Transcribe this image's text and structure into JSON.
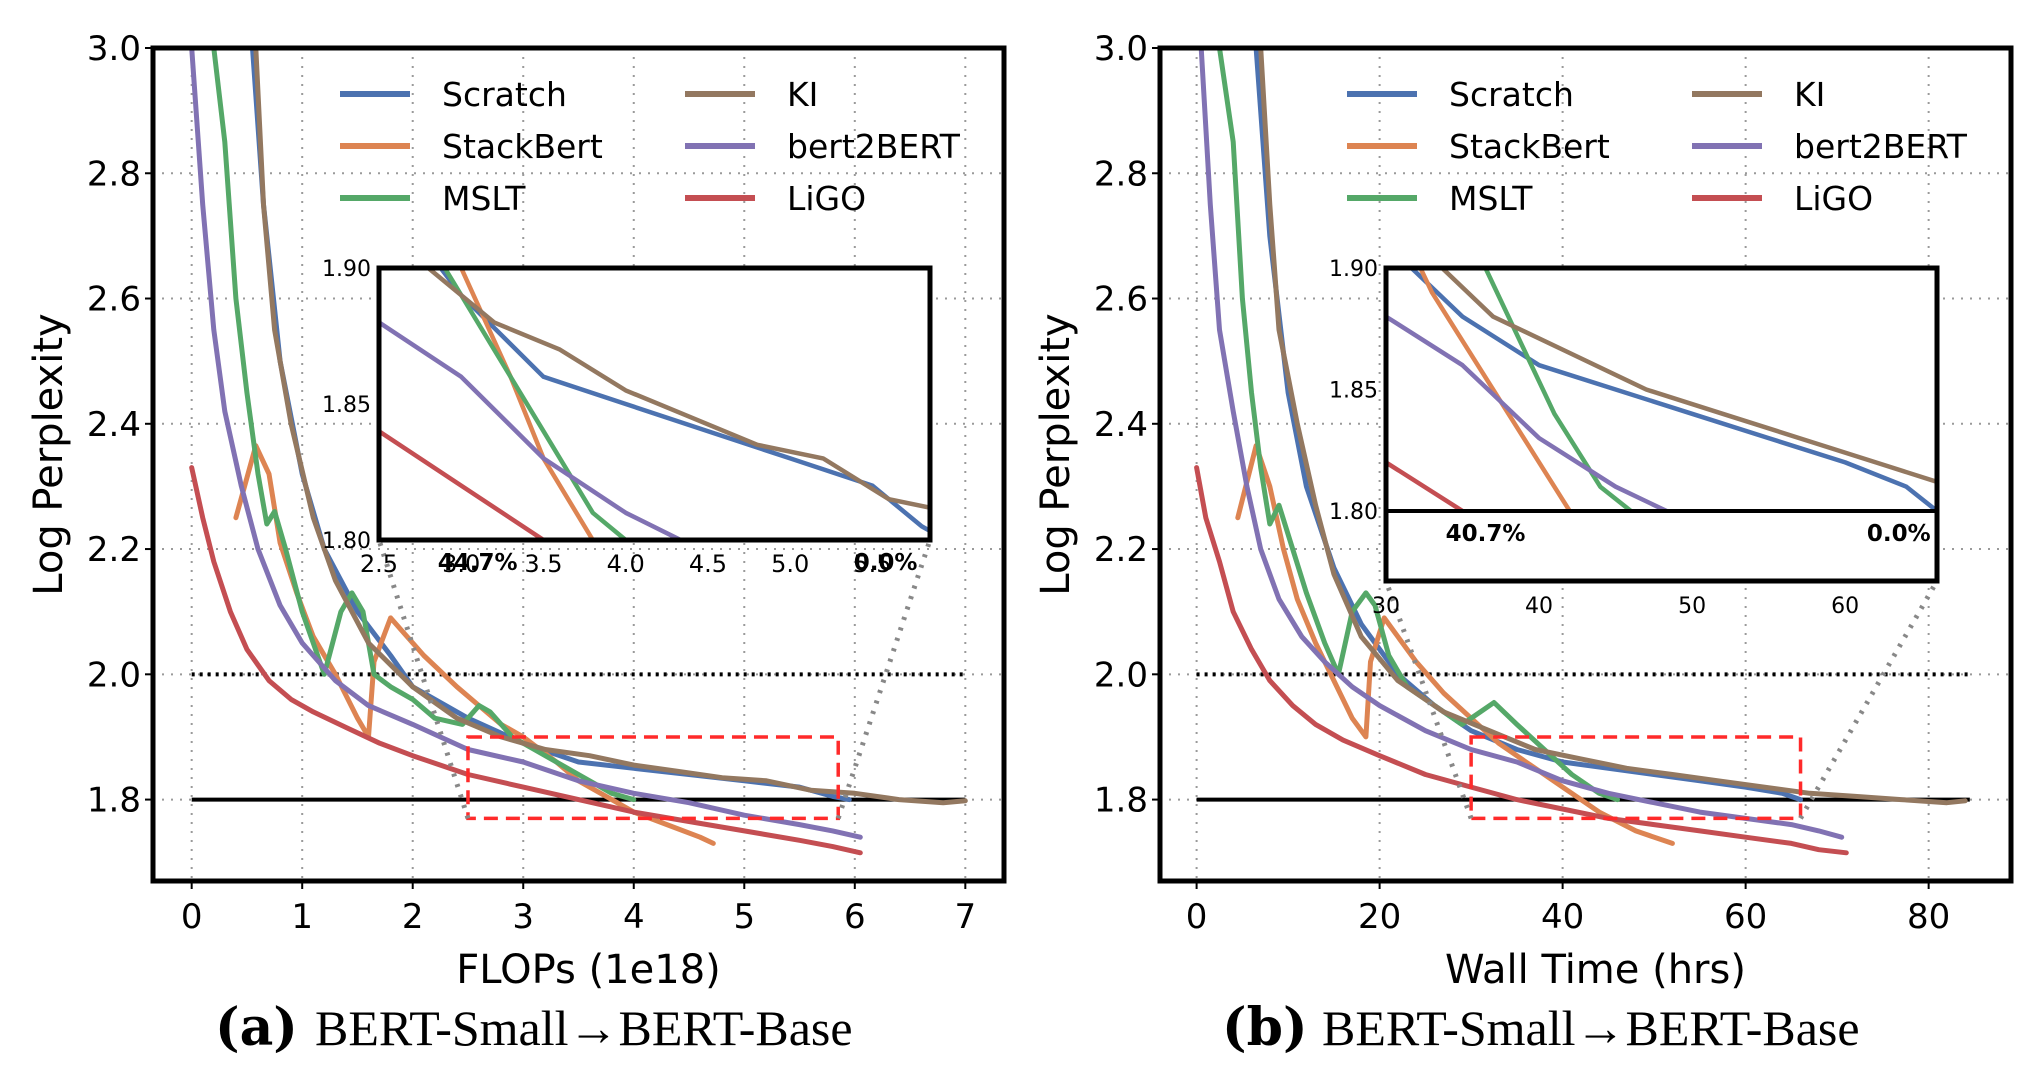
{
  "colors": {
    "Scratch": "#4C72B0",
    "StackBert": "#DD8452",
    "MSLT": "#55A868",
    "KI": "#937860",
    "bert2BERT": "#8172B3",
    "LiGO": "#C44E52",
    "zoom_box": "#FF2A2A",
    "connector": "#888888"
  },
  "captions": [
    {
      "letter": "(a)",
      "text": "BERT-Small→BERT-Base"
    },
    {
      "letter": "(b)",
      "text": "BERT-Small→BERT-Base"
    }
  ],
  "chart_data": [
    {
      "type": "line",
      "xlabel": "FLOPs (1e18)",
      "ylabel": "Log Perplexity",
      "xlim": [
        -0.35,
        7.35
      ],
      "ylim": [
        1.67,
        3.0
      ],
      "xticks": [
        "0",
        "1",
        "2",
        "3",
        "4",
        "5",
        "6",
        "7"
      ],
      "yticks": [
        "1.8",
        "2.0",
        "2.2",
        "2.4",
        "2.6",
        "2.8",
        "3.0"
      ],
      "grid": true,
      "legend": "top (two columns)",
      "legend_entries": [
        "Scratch",
        "StackBert",
        "MSLT",
        "KI",
        "bert2BERT",
        "LiGO"
      ],
      "reference_lines": [
        {
          "y": 1.8,
          "style": "solid"
        },
        {
          "y": 2.0,
          "style": "dotted"
        }
      ],
      "zoom_region": {
        "x": [
          2.5,
          5.85
        ],
        "y": [
          1.77,
          1.9
        ]
      },
      "series": [
        {
          "name": "Scratch",
          "x": [
            0.55,
            0.65,
            0.8,
            1.0,
            1.2,
            1.5,
            1.8,
            2.0,
            2.5,
            3.0,
            3.5,
            4.0,
            4.5,
            5.0,
            5.5,
            5.8,
            5.95
          ],
          "y": [
            3.0,
            2.75,
            2.5,
            2.32,
            2.2,
            2.1,
            2.03,
            1.98,
            1.93,
            1.89,
            1.86,
            1.85,
            1.84,
            1.83,
            1.82,
            1.805,
            1.8
          ]
        },
        {
          "name": "StackBert",
          "x": [
            0.4,
            0.58,
            0.7,
            0.8,
            0.95,
            1.1,
            1.3,
            1.5,
            1.6,
            1.65,
            1.8,
            1.9,
            2.1,
            2.4,
            2.6,
            2.8,
            3.0,
            3.3,
            3.5,
            3.8,
            4.0,
            4.3,
            4.6,
            4.72
          ],
          "y": [
            2.25,
            2.365,
            2.32,
            2.21,
            2.13,
            2.06,
            2.0,
            1.93,
            1.9,
            2.02,
            2.09,
            2.07,
            2.03,
            1.98,
            1.95,
            1.92,
            1.9,
            1.86,
            1.83,
            1.8,
            1.78,
            1.76,
            1.74,
            1.73
          ]
        },
        {
          "name": "MSLT",
          "x": [
            0.2,
            0.3,
            0.4,
            0.5,
            0.6,
            0.68,
            0.75,
            0.85,
            1.0,
            1.2,
            1.35,
            1.45,
            1.55,
            1.65,
            1.8,
            2.0,
            2.2,
            2.45,
            2.6,
            2.7,
            2.9,
            3.2,
            3.5,
            3.8,
            4.0
          ],
          "y": [
            3.0,
            2.85,
            2.6,
            2.45,
            2.32,
            2.24,
            2.26,
            2.2,
            2.1,
            2.0,
            2.1,
            2.13,
            2.1,
            2.0,
            1.98,
            1.96,
            1.93,
            1.92,
            1.95,
            1.94,
            1.9,
            1.87,
            1.84,
            1.81,
            1.8
          ]
        },
        {
          "name": "KI",
          "x": [
            0.58,
            0.65,
            0.75,
            0.9,
            1.1,
            1.3,
            1.6,
            2.0,
            2.4,
            2.8,
            3.2,
            3.6,
            4.0,
            4.4,
            4.8,
            5.2,
            5.6,
            6.0,
            6.4,
            6.8,
            7.0
          ],
          "y": [
            3.0,
            2.75,
            2.55,
            2.4,
            2.25,
            2.15,
            2.05,
            1.98,
            1.93,
            1.9,
            1.88,
            1.87,
            1.855,
            1.845,
            1.835,
            1.83,
            1.815,
            1.81,
            1.8,
            1.795,
            1.798
          ]
        },
        {
          "name": "bert2BERT",
          "x": [
            0.0,
            0.1,
            0.2,
            0.3,
            0.45,
            0.6,
            0.8,
            1.0,
            1.3,
            1.6,
            2.0,
            2.5,
            3.0,
            3.5,
            4.0,
            4.5,
            5.0,
            5.5,
            5.8,
            6.05
          ],
          "y": [
            3.0,
            2.75,
            2.55,
            2.42,
            2.3,
            2.2,
            2.11,
            2.05,
            1.99,
            1.95,
            1.92,
            1.88,
            1.86,
            1.83,
            1.81,
            1.795,
            1.775,
            1.76,
            1.75,
            1.74
          ]
        },
        {
          "name": "LiGO",
          "x": [
            0.0,
            0.1,
            0.2,
            0.35,
            0.5,
            0.7,
            0.9,
            1.1,
            1.4,
            1.7,
            2.0,
            2.5,
            3.0,
            3.5,
            4.0,
            4.5,
            5.0,
            5.5,
            5.8,
            6.05
          ],
          "y": [
            2.33,
            2.25,
            2.18,
            2.1,
            2.04,
            1.99,
            1.96,
            1.94,
            1.915,
            1.89,
            1.87,
            1.84,
            1.82,
            1.8,
            1.78,
            1.765,
            1.75,
            1.735,
            1.725,
            1.715
          ]
        }
      ],
      "inset": {
        "xlim": [
          2.5,
          5.85
        ],
        "ylim": [
          1.8,
          1.9
        ],
        "xticks": [
          "2.5",
          "3.0",
          "3.5",
          "4.0",
          "4.5",
          "5.0",
          "5.5"
        ],
        "yticks": [
          "1.80",
          "1.85",
          "1.90"
        ],
        "annotations": [
          {
            "text": "44.7%",
            "x": 3.1
          },
          {
            "text": "0.0%",
            "x": 5.58
          }
        ]
      }
    },
    {
      "type": "line",
      "xlabel": "Wall Time (hrs)",
      "ylabel": "Log Perplexity",
      "xlim": [
        -4,
        89
      ],
      "ylim": [
        1.67,
        3.0
      ],
      "xticks": [
        "0",
        "20",
        "40",
        "60",
        "80"
      ],
      "yticks": [
        "1.8",
        "2.0",
        "2.2",
        "2.4",
        "2.6",
        "2.8",
        "3.0"
      ],
      "grid": true,
      "legend": "top (two columns)",
      "legend_entries": [
        "Scratch",
        "StackBert",
        "MSLT",
        "KI",
        "bert2BERT",
        "LiGO"
      ],
      "reference_lines": [
        {
          "y": 1.8,
          "style": "solid"
        },
        {
          "y": 2.0,
          "style": "dotted"
        }
      ],
      "zoom_region": {
        "x": [
          30,
          66
        ],
        "y": [
          1.77,
          1.9
        ]
      },
      "series": [
        {
          "name": "Scratch",
          "x": [
            6.5,
            8,
            10,
            12,
            15,
            18,
            22,
            26,
            30,
            35,
            40,
            45,
            50,
            55,
            60,
            64,
            66
          ],
          "y": [
            3.0,
            2.7,
            2.45,
            2.3,
            2.17,
            2.08,
            2.0,
            1.95,
            1.91,
            1.88,
            1.86,
            1.85,
            1.84,
            1.83,
            1.82,
            1.81,
            1.8
          ]
        },
        {
          "name": "StackBert",
          "x": [
            4.5,
            6.5,
            8,
            9.5,
            11,
            13,
            15,
            17,
            18.5,
            19,
            20.5,
            22,
            24,
            27,
            30,
            33,
            36,
            40,
            44,
            48,
            52
          ],
          "y": [
            2.25,
            2.365,
            2.3,
            2.2,
            2.12,
            2.05,
            1.99,
            1.93,
            1.9,
            2.02,
            2.09,
            2.06,
            2.02,
            1.97,
            1.93,
            1.89,
            1.86,
            1.82,
            1.78,
            1.75,
            1.73
          ]
        },
        {
          "name": "MSLT",
          "x": [
            2.5,
            4,
            5,
            6,
            7,
            8,
            9,
            10.5,
            12,
            14,
            15.5,
            17,
            18.5,
            19.5,
            21,
            23,
            26,
            29,
            31,
            32.5,
            35,
            38,
            41,
            44,
            46
          ],
          "y": [
            3.0,
            2.85,
            2.6,
            2.45,
            2.33,
            2.24,
            2.27,
            2.2,
            2.13,
            2.05,
            2.0,
            2.1,
            2.13,
            2.11,
            2.03,
            1.98,
            1.95,
            1.92,
            1.94,
            1.955,
            1.92,
            1.88,
            1.84,
            1.81,
            1.8
          ]
        },
        {
          "name": "KI",
          "x": [
            7,
            8,
            9,
            11,
            13,
            15,
            18,
            22,
            27,
            32,
            37,
            42,
            47,
            52,
            57,
            62,
            67,
            72,
            77,
            82,
            84
          ],
          "y": [
            3.0,
            2.75,
            2.55,
            2.4,
            2.27,
            2.16,
            2.06,
            1.99,
            1.94,
            1.91,
            1.88,
            1.865,
            1.85,
            1.84,
            1.83,
            1.82,
            1.81,
            1.805,
            1.8,
            1.795,
            1.798
          ]
        },
        {
          "name": "bert2BERT",
          "x": [
            0.5,
            1.5,
            2.5,
            4,
            5.5,
            7,
            9,
            11.5,
            14,
            17,
            20,
            25,
            30,
            35,
            40,
            45,
            50,
            55,
            60,
            65,
            68,
            70.5
          ],
          "y": [
            3.0,
            2.75,
            2.55,
            2.42,
            2.3,
            2.2,
            2.12,
            2.06,
            2.02,
            1.98,
            1.95,
            1.91,
            1.88,
            1.86,
            1.83,
            1.81,
            1.795,
            1.78,
            1.77,
            1.76,
            1.75,
            1.74
          ]
        },
        {
          "name": "LiGO",
          "x": [
            0,
            1,
            2.5,
            4,
            6,
            8,
            10.5,
            13,
            16,
            20,
            25,
            30,
            35,
            40,
            45,
            50,
            55,
            60,
            65,
            68,
            71
          ],
          "y": [
            2.33,
            2.25,
            2.18,
            2.1,
            2.04,
            1.99,
            1.95,
            1.92,
            1.895,
            1.87,
            1.84,
            1.82,
            1.8,
            1.785,
            1.77,
            1.76,
            1.75,
            1.74,
            1.73,
            1.72,
            1.715
          ]
        }
      ],
      "inset": {
        "xlim": [
          30,
          66
        ],
        "ylim": [
          1.8,
          1.9
        ],
        "xticks": [
          "30",
          "40",
          "50",
          "60"
        ],
        "yticks": [
          "1.80",
          "1.85",
          "1.90"
        ],
        "annotations": [
          {
            "text": "40.7%",
            "x": 36.5
          },
          {
            "text": "0.0%",
            "x": 63.5
          }
        ]
      }
    }
  ]
}
